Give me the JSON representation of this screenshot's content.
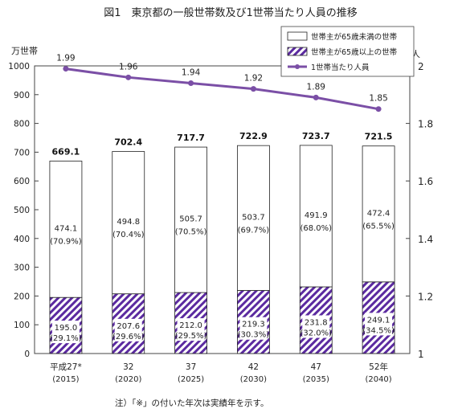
{
  "chart_data": {
    "type": "bar+line",
    "title": "図1　東京都の一般世帯数及び1世帯当たり人員の推移",
    "ylabel_left": "万世帯",
    "ylabel_right": "人",
    "ylim_left": [
      0,
      1000
    ],
    "yticks_left": [
      "0",
      "100",
      "200",
      "300",
      "400",
      "500",
      "600",
      "700",
      "800",
      "900",
      "1000"
    ],
    "ylim_right": [
      1,
      2
    ],
    "yticks_right": [
      "1",
      "1.2",
      "1.4",
      "1.6",
      "1.8",
      "2"
    ],
    "categories": [
      {
        "label": "平成27*",
        "sub": "(2015)"
      },
      {
        "label": "32",
        "sub": "(2020)"
      },
      {
        "label": "37",
        "sub": "(2025)"
      },
      {
        "label": "42",
        "sub": "(2030)"
      },
      {
        "label": "47",
        "sub": "(2035)"
      },
      {
        "label": "52年",
        "sub": "(2040)"
      }
    ],
    "series": [
      {
        "name": "世帯主が65歳以上の世帯",
        "values": [
          195.0,
          207.6,
          212.0,
          219.3,
          231.8,
          249.1
        ],
        "labels": [
          "195.0",
          "207.6",
          "212.0",
          "219.3",
          "231.8",
          "249.1"
        ],
        "share_labels": [
          "(29.1%)",
          "(29.6%)",
          "(29.5%)",
          "(30.3%)",
          "(32.0%)",
          "(34.5%)"
        ],
        "color": "#5b2aa0"
      },
      {
        "name": "世帯主が65歳未満の世帯",
        "values": [
          474.1,
          494.8,
          505.7,
          503.7,
          491.9,
          472.4
        ],
        "labels": [
          "474.1",
          "494.8",
          "505.7",
          "503.7",
          "491.9",
          "472.4"
        ],
        "share_labels": [
          "(70.9%)",
          "(70.4%)",
          "(70.5%)",
          "(69.7%)",
          "(68.0%)",
          "(65.5%)"
        ],
        "color": "#ffffff"
      },
      {
        "name": "1世帯当たり人員",
        "values": [
          1.99,
          1.96,
          1.94,
          1.92,
          1.89,
          1.85
        ],
        "labels": [
          "1.99",
          "1.96",
          "1.94",
          "1.92",
          "1.89",
          "1.85"
        ],
        "color": "#7b4fa6"
      }
    ],
    "totals": [
      "669.1",
      "702.4",
      "717.7",
      "722.9",
      "723.7",
      "721.5"
    ],
    "legend_position": "top-right",
    "grid": false,
    "note": "注）「※」の付いた年次は実績年を示す。"
  }
}
